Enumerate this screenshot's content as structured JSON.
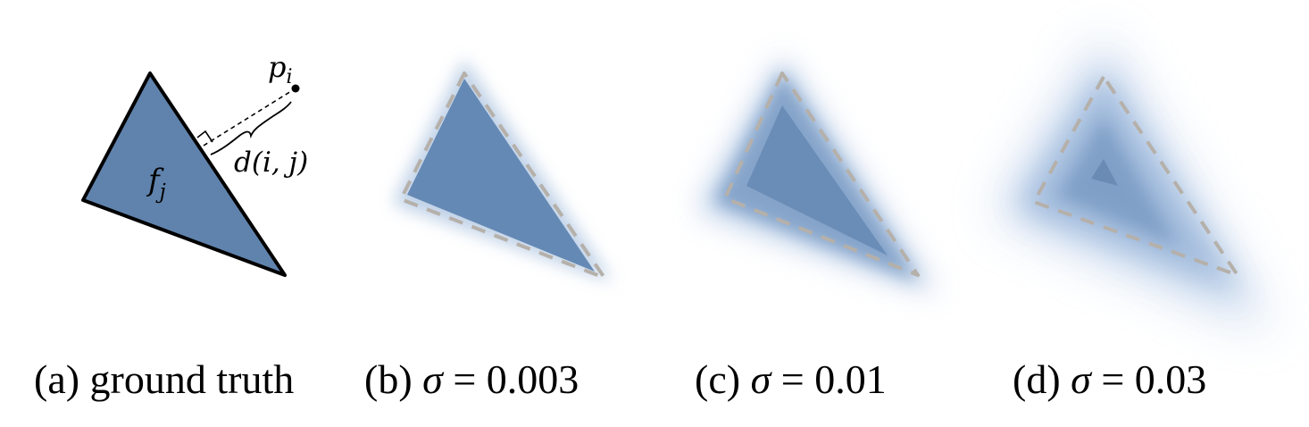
{
  "panels": [
    {
      "id": "a",
      "caption": "(a) ground truth",
      "label_face": "f",
      "label_face_sub": "j",
      "label_point": "p",
      "label_point_sub": "i",
      "label_distance": "d(i, j)"
    },
    {
      "id": "b",
      "caption_prefix": "(b) ",
      "caption_symbol": "σ",
      "caption_rest": " = 0.003"
    },
    {
      "id": "c",
      "caption_prefix": "(c) ",
      "caption_symbol": "σ",
      "caption_rest": " = 0.01"
    },
    {
      "id": "d",
      "caption_prefix": "(d) ",
      "caption_symbol": "σ",
      "caption_rest": " = 0.03"
    }
  ],
  "colors": {
    "triangle_fill": "#6083ad",
    "blur_light": "#dbe7f5",
    "dashed_outline": "#b5b0aa",
    "edge_stroke": "#000000"
  }
}
